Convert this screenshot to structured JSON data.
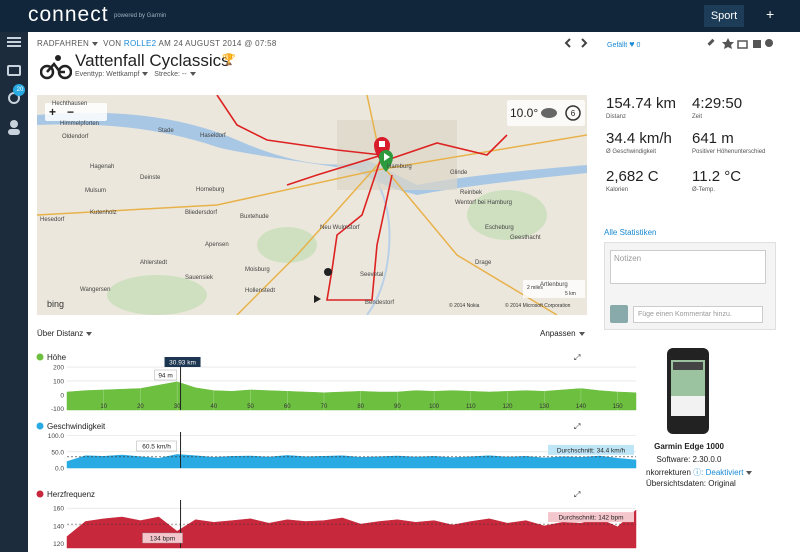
{
  "nav": {
    "logo": "connect",
    "powered": "powered by Garmin",
    "sport": "Sport",
    "add": "+",
    "badge": "20"
  },
  "header": {
    "sport": "RADFAHREN",
    "by": "VON",
    "user": "ROLLE2",
    "date": "AM 24 AUGUST 2014 @ 07:58",
    "like_label": "Gefällt",
    "like_count": 0
  },
  "activity": {
    "title": "Vattenfall Cyclassics",
    "event_type": "Eventtyp: Wettkampf",
    "course": "Strecke: --"
  },
  "map": {
    "weather": "10.0°",
    "wind": "6",
    "provider": "bing",
    "copyright_nokia": "© 2014 Nokia",
    "copyright_ms": "© 2014 Microsoft Corporation",
    "scale_miles": "2 miles",
    "scale_km": "5 km",
    "zoom_in": "+",
    "zoom_out": "−",
    "places": [
      "Hechthausen",
      "Himmelpforten",
      "Oldendorf",
      "Haseldorf",
      "Stade",
      "Hagenah",
      "Deinste",
      "Mulsum",
      "Horneburg",
      "Kutenholz",
      "Bliedersdorf",
      "Buxtehude",
      "Hesedorf",
      "Apensen",
      "Ahlerstedt",
      "Moisburg",
      "Wangersen",
      "Hollenstedt",
      "Hamburg",
      "Glinde",
      "Reinbek",
      "Geesthacht",
      "Seevetal",
      "Bendestorf",
      "Drage",
      "Artlenburg",
      "Sauensiek",
      "Wentorf bei Hamburg",
      "Escheburg",
      "Neu Wulmstorf"
    ]
  },
  "stats": [
    {
      "value": "154.74 km",
      "label": "Distanz"
    },
    {
      "value": "4:29:50",
      "label": "Zeit"
    },
    {
      "value": "34.4 km/h",
      "label": "Ø Geschwindigkeit"
    },
    {
      "value": "641 m",
      "label": "Positiver Höhenunterschied"
    },
    {
      "value": "2,682 C",
      "label": "Kalorien"
    },
    {
      "value": "11.2 °C",
      "label": "Ø-Temp."
    }
  ],
  "all_stats": "Alle Statistiken",
  "notes": {
    "placeholder": "Notizen",
    "comment_placeholder": "Füge einen Kommentar hinzu."
  },
  "chart_controls": {
    "over": "Über Distanz",
    "adjust": "Anpassen"
  },
  "chart_data": [
    {
      "type": "area",
      "title": "Höhe",
      "color": "#6cbf3f",
      "x": [
        0,
        5,
        10,
        15,
        20,
        25,
        30,
        35,
        40,
        45,
        50,
        55,
        60,
        65,
        70,
        75,
        80,
        85,
        90,
        95,
        100,
        105,
        110,
        115,
        120,
        125,
        130,
        135,
        140,
        145,
        150,
        155
      ],
      "values": [
        20,
        30,
        35,
        40,
        45,
        70,
        94,
        50,
        30,
        25,
        35,
        30,
        25,
        20,
        15,
        20,
        25,
        20,
        20,
        30,
        25,
        30,
        25,
        20,
        25,
        30,
        25,
        35,
        45,
        30,
        20,
        15
      ],
      "xlim": [
        0,
        155
      ],
      "ylim": [
        -110,
        215
      ],
      "yticks": [
        -100,
        0,
        100,
        200
      ],
      "xticks": [
        10,
        20,
        30,
        40,
        50,
        60,
        70,
        80,
        90,
        100,
        110,
        120,
        130,
        140,
        150
      ],
      "cursor": {
        "value": 30.93,
        "label": "30.93 km"
      },
      "cursor_value": "94 m"
    },
    {
      "type": "area",
      "title": "Geschwindigkeit",
      "color": "#29aae2",
      "x": [
        0,
        5,
        10,
        15,
        20,
        25,
        30,
        35,
        40,
        45,
        50,
        55,
        60,
        65,
        70,
        75,
        80,
        85,
        90,
        95,
        100,
        105,
        110,
        115,
        120,
        125,
        130,
        135,
        140,
        145,
        150,
        155
      ],
      "values": [
        20,
        38,
        36,
        40,
        35,
        30,
        42,
        38,
        33,
        36,
        37,
        34,
        39,
        35,
        36,
        38,
        33,
        35,
        37,
        34,
        36,
        32,
        35,
        38,
        34,
        36,
        31,
        35,
        33,
        37,
        30,
        25
      ],
      "xlim": [
        0,
        155
      ],
      "ylim": [
        0,
        105
      ],
      "yticks": [
        {
          "value": 0,
          "label": "0.0"
        },
        {
          "value": 50,
          "label": "50.0"
        },
        {
          "value": 100,
          "label": "100.0"
        }
      ],
      "cursor_value": "60.5 km/h",
      "average": {
        "value": 34.4,
        "label": "Durchschnitt: 34.4 km/h"
      }
    },
    {
      "type": "area",
      "title": "Herzfrequenz",
      "color": "#c8283c",
      "x": [
        0,
        5,
        10,
        15,
        20,
        25,
        30,
        35,
        40,
        45,
        50,
        55,
        60,
        65,
        70,
        75,
        80,
        85,
        90,
        95,
        100,
        105,
        110,
        115,
        120,
        125,
        130,
        135,
        140,
        145,
        150,
        155
      ],
      "values": [
        128,
        145,
        148,
        150,
        146,
        150,
        134,
        147,
        144,
        146,
        148,
        143,
        147,
        145,
        146,
        149,
        142,
        145,
        147,
        144,
        146,
        141,
        145,
        148,
        143,
        146,
        140,
        144,
        143,
        148,
        139,
        158
      ],
      "xlim": [
        0,
        155
      ],
      "ylim": [
        115,
        167
      ],
      "yticks": [
        120,
        140,
        160
      ],
      "cursor_value": "134 bpm",
      "average": {
        "value": 142,
        "label": "Durchschnitt: 142 bpm"
      }
    }
  ],
  "device": {
    "name": "Garmin Edge 1000",
    "software": "Software: 2.30.0.0",
    "corrections_label": "nkorrekturen",
    "corrections_value": "Deaktiviert",
    "summary": "Übersichtsdaten: Original"
  }
}
